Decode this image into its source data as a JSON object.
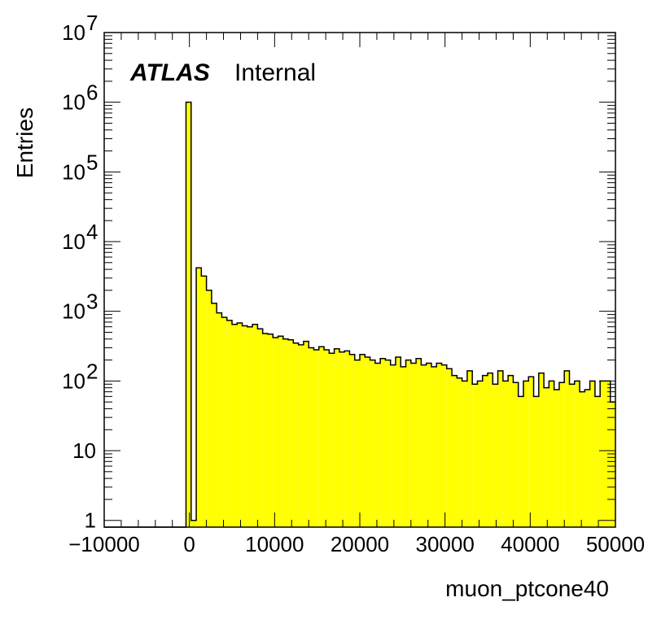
{
  "chart_data": {
    "type": "bar",
    "title": "",
    "xlabel": "muon_ptcone40",
    "ylabel": "Entries",
    "label_bold": "ATLAS",
    "label_text": "Internal",
    "yscale": "log",
    "xlim": [
      -10000,
      50000
    ],
    "ylim": [
      0.8,
      10000000
    ],
    "fill_color": "#ffff00",
    "line_color": "#000000",
    "x_ticks": [
      -10000,
      0,
      10000,
      20000,
      30000,
      40000,
      50000
    ],
    "x_tick_labels": [
      "−10000",
      "0",
      "10000",
      "20000",
      "30000",
      "40000",
      "50000"
    ],
    "y_ticks": [
      {
        "value": 1,
        "base": "1",
        "exp": ""
      },
      {
        "value": 10,
        "base": "10",
        "exp": ""
      },
      {
        "value": 100,
        "base": "10",
        "exp": "2"
      },
      {
        "value": 1000,
        "base": "10",
        "exp": "3"
      },
      {
        "value": 10000,
        "base": "10",
        "exp": "4"
      },
      {
        "value": 100000,
        "base": "10",
        "exp": "5"
      },
      {
        "value": 1000000,
        "base": "10",
        "exp": "6"
      },
      {
        "value": 10000000,
        "base": "10",
        "exp": "7"
      }
    ],
    "bin_width": 600,
    "bins_start": -10000,
    "series": [
      {
        "values": [
          0,
          0,
          0,
          0,
          0,
          0,
          0,
          0,
          0,
          0,
          0,
          0,
          0,
          0,
          0,
          0,
          1000000,
          1,
          4200,
          3200,
          2000,
          1300,
          950,
          820,
          740,
          650,
          680,
          620,
          600,
          650,
          560,
          480,
          470,
          420,
          440,
          400,
          390,
          350,
          330,
          370,
          300,
          280,
          310,
          280,
          250,
          290,
          260,
          270,
          240,
          200,
          240,
          220,
          200,
          180,
          210,
          200,
          170,
          220,
          160,
          200,
          180,
          210,
          170,
          180,
          160,
          180,
          170,
          150,
          120,
          110,
          100,
          140,
          90,
          100,
          120,
          130,
          90,
          140,
          100,
          120,
          95,
          60,
          100,
          115,
          60,
          130,
          80,
          100,
          75,
          95,
          140,
          90,
          100,
          70,
          75,
          100,
          60,
          100,
          100,
          50
        ]
      }
    ]
  }
}
